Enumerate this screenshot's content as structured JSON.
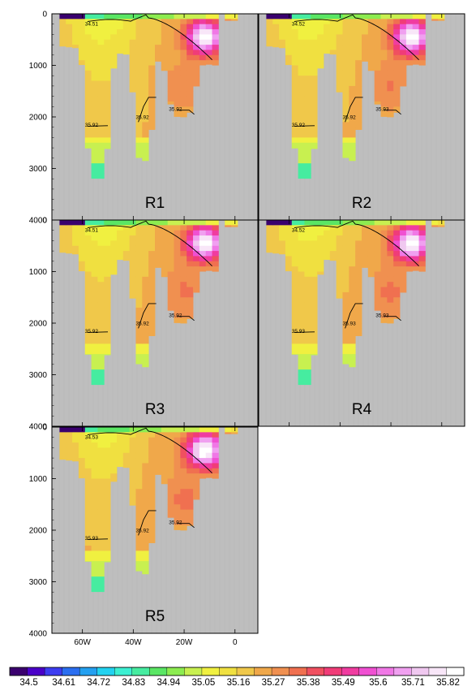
{
  "chart_data": {
    "type": "heatmap",
    "layout": "multi-panel grid (3 rows x 2 columns, 5 panels) with shared horizontal colorbar",
    "x_axis": {
      "ticks": [
        -60,
        -40,
        -20,
        0
      ],
      "tick_labels": [
        "60W",
        "40W",
        "20W",
        "0"
      ],
      "range": [
        -72,
        9
      ]
    },
    "y_axis": {
      "ticks": [
        0,
        1000,
        2000,
        3000,
        4000
      ],
      "tick_labels": [
        "0",
        "1000",
        "2000",
        "3000",
        "4000"
      ],
      "range": [
        4000,
        0
      ],
      "inverted": true
    },
    "panels": [
      {
        "label": "R1",
        "contour_labels": [
          "34.51",
          "35.92",
          "35.92",
          "35.92"
        ]
      },
      {
        "label": "R2",
        "contour_labels": [
          "34.52",
          "35.92",
          "35.92",
          "35.93"
        ]
      },
      {
        "label": "R3",
        "contour_labels": [
          "34.51",
          "35.92",
          "35.92",
          "35.92"
        ]
      },
      {
        "label": "R4",
        "contour_labels": [
          "34.52",
          "35.93",
          "35.93",
          "35.93"
        ]
      },
      {
        "label": "R5",
        "contour_labels": [
          "34.53",
          "35.93",
          "35.92",
          "35.92"
        ]
      }
    ],
    "colorbar": {
      "labels": [
        "34.5",
        "34.61",
        "34.72",
        "34.83",
        "34.94",
        "35.05",
        "35.16",
        "35.27",
        "35.38",
        "35.49",
        "35.6",
        "35.71",
        "35.82"
      ],
      "colors": [
        "#3a006e",
        "#4a00c8",
        "#3c3cf0",
        "#2a6ef0",
        "#24a0f0",
        "#22d2f0",
        "#3cf0d2",
        "#46eca0",
        "#5ae664",
        "#8cec50",
        "#c8f050",
        "#f0f040",
        "#f0e040",
        "#f0c84a",
        "#f0a84a",
        "#f09050",
        "#f07050",
        "#f05060",
        "#f03c78",
        "#f03ca0",
        "#f050d2",
        "#f078e6",
        "#f0a0f0",
        "#f0c8f0",
        "#f8e6f8",
        "#ffffff"
      ]
    },
    "colors": {
      "missing": "#bebebe",
      "land": "#ffffff"
    }
  }
}
